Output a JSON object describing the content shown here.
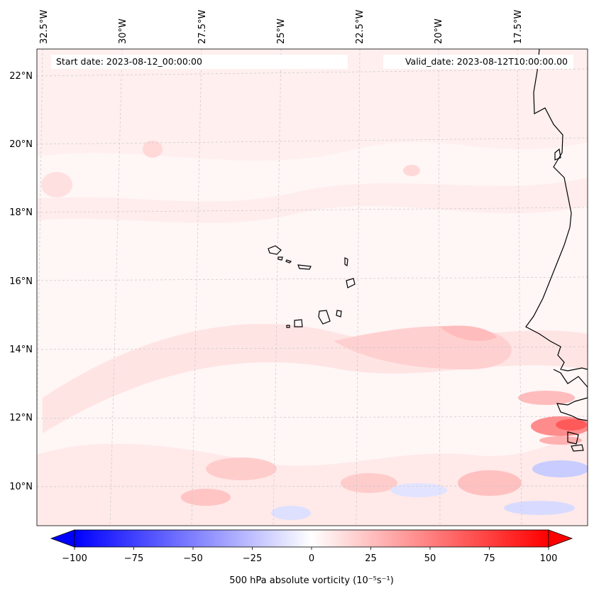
{
  "map": {
    "start_date_label": "Start date: 2023-08-12_00:00:00",
    "valid_date_label": "Valid_date: 2023-08-12T10:00:00.00",
    "lon_labels": [
      "32.5°W",
      "30°W",
      "27.5°W",
      "25°W",
      "22.5°W",
      "20°W",
      "17.5°W"
    ],
    "lat_labels": [
      "22°N",
      "20°N",
      "18°N",
      "16°N",
      "14°N",
      "12°N",
      "10°N"
    ],
    "colors": {
      "min": "#0000ff",
      "mid": "#ffffff",
      "max": "#ff0000",
      "coast": "#000000",
      "grid": "#bbbbbb"
    }
  },
  "colorbar": {
    "ticks": [
      "−100",
      "−75",
      "−50",
      "−25",
      "0",
      "25",
      "50",
      "75",
      "100"
    ],
    "tick_values": [
      -100,
      -75,
      -50,
      -25,
      0,
      25,
      50,
      75,
      100
    ],
    "label": "500 hPa absolute vorticity (10⁻⁵s⁻¹)",
    "range": [
      -100,
      100
    ]
  }
}
